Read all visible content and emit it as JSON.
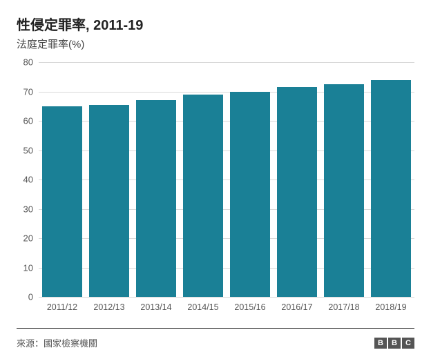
{
  "chart": {
    "type": "bar",
    "title": "性侵定罪率, 2011-19",
    "subtitle": "法庭定罪率(%)",
    "title_fontsize": 20,
    "subtitle_fontsize": 15,
    "title_color": "#222222",
    "subtitle_color": "#444444",
    "background_color": "#ffffff",
    "categories": [
      "2011/12",
      "2012/13",
      "2013/14",
      "2014/15",
      "2015/16",
      "2016/17",
      "2017/18",
      "2018/19"
    ],
    "values": [
      65,
      65.5,
      67,
      69,
      70,
      71.5,
      72.5,
      74
    ],
    "bar_color": "#1a8096",
    "bar_width": 0.84,
    "ylim": [
      0,
      80
    ],
    "ytick_step": 10,
    "yticks": [
      0,
      10,
      20,
      30,
      40,
      50,
      60,
      70,
      80
    ],
    "grid_color": "#d8d8d8",
    "axis_font_color": "#555555",
    "axis_fontsize": 13
  },
  "footer": {
    "source_text": "來源：國家檢察機關",
    "source_fontsize": 13,
    "source_color": "#555555",
    "logo_letters": [
      "B",
      "B",
      "C"
    ],
    "logo_bg": "#555555",
    "logo_fg": "#ffffff",
    "divider_color": "#333333"
  }
}
